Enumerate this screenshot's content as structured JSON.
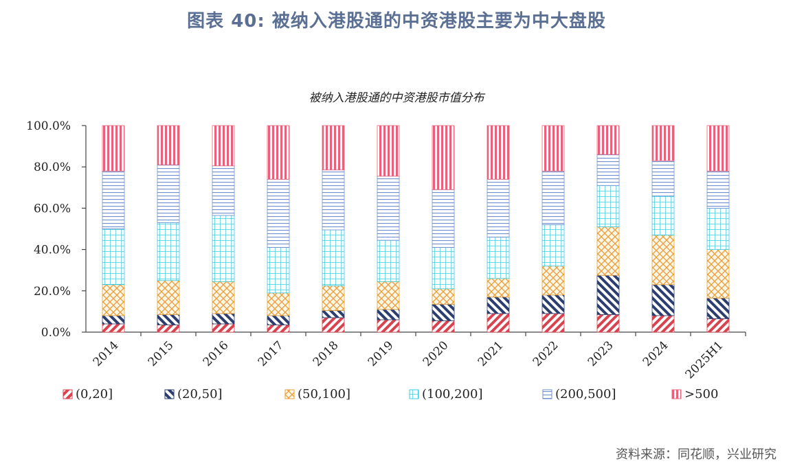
{
  "page": {
    "title": "图表 40: 被纳入港股通的中资港股主要为中大盘股",
    "source": "资料来源：同花顺，兴业研究"
  },
  "chart_data": {
    "type": "bar",
    "stacked": true,
    "title": "被纳入港股通的中资港股市值分布",
    "xlabel": "",
    "ylabel": "",
    "ylim": [
      0,
      100
    ],
    "y_ticks": [
      "0.0%",
      "20.0%",
      "40.0%",
      "60.0%",
      "80.0%",
      "100.0%"
    ],
    "grid": false,
    "legend_position": "bottom",
    "categories": [
      "2014",
      "2015",
      "2016",
      "2017",
      "2018",
      "2019",
      "2020",
      "2021",
      "2022",
      "2023",
      "2024",
      "2025H1"
    ],
    "series": [
      {
        "name": "(0,20]",
        "color": "#d9434f",
        "pattern": "diagonal-hatch",
        "values": [
          4,
          3.5,
          4,
          3.5,
          7,
          6,
          5.5,
          9,
          9,
          8.5,
          8,
          6.5
        ]
      },
      {
        "name": "(20,50]",
        "color": "#2c3e70",
        "pattern": "diagonal-hatch",
        "values": [
          4,
          5,
          5,
          4.5,
          3.5,
          5,
          8,
          8,
          9,
          19,
          15,
          10
        ]
      },
      {
        "name": "(50,100]",
        "color": "#e9a23b",
        "pattern": "cross-hatch",
        "values": [
          15,
          16.5,
          15.5,
          11,
          12,
          13.5,
          7.5,
          9,
          14,
          23.5,
          24,
          23.5
        ]
      },
      {
        "name": "(100,200]",
        "color": "#38c9e0",
        "pattern": "grid",
        "values": [
          27,
          28,
          32,
          22,
          27,
          20,
          20,
          20,
          20,
          20,
          19,
          20
        ]
      },
      {
        "name": "(200,500]",
        "color": "#6f8fd0",
        "pattern": "horizontal-lines",
        "values": [
          28,
          28,
          24,
          33,
          29,
          31,
          28,
          28,
          26,
          15,
          17,
          18
        ]
      },
      {
        "name": ">500",
        "color": "#e8607a",
        "pattern": "vertical-lines",
        "values": [
          22,
          19,
          19.5,
          26,
          21.5,
          24.5,
          31,
          26,
          22,
          14,
          17,
          22
        ]
      }
    ]
  }
}
